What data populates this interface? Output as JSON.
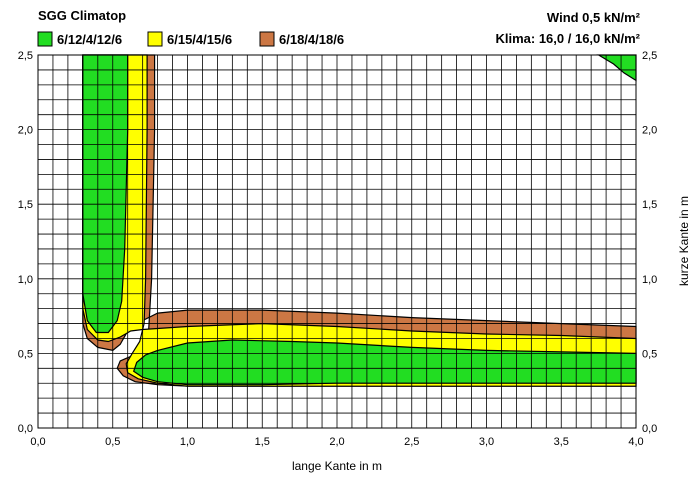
{
  "chart_data": {
    "type": "contour",
    "title": "SGG Climatop",
    "info_line_1": "Wind 0,5 kN/m²",
    "info_line_2": "Klima: 16,0 / 16,0 kN/m²",
    "xlabel": "lange Kante in m",
    "ylabel": "kurze Kante in m",
    "xlim": [
      0,
      4
    ],
    "ylim": [
      0,
      2.5
    ],
    "x_ticks": [
      "0,0",
      "0,5",
      "1,0",
      "1,5",
      "2,0",
      "2,5",
      "3,0",
      "3,5",
      "4,0"
    ],
    "y_ticks": [
      "0,0",
      "0,5",
      "1,0",
      "1,5",
      "2,0",
      "2,5"
    ],
    "grid": true,
    "legend": [
      {
        "label": "6/12/4/12/6",
        "color": "#22dd22"
      },
      {
        "label": "6/15/4/15/6",
        "color": "#ffff00"
      },
      {
        "label": "6/18/4/18/6",
        "color": "#cc7744"
      }
    ],
    "series": [
      {
        "name": "6/18/4/18/6",
        "color": "#cc7744",
        "regions": [
          [
            [
              0.3,
              2.5
            ],
            [
              0.3,
              0.7
            ],
            [
              0.33,
              0.6
            ],
            [
              0.4,
              0.54
            ],
            [
              0.5,
              0.52
            ],
            [
              0.55,
              0.56
            ],
            [
              0.6,
              0.65
            ],
            [
              0.7,
              0.72
            ],
            [
              0.8,
              0.77
            ],
            [
              1.0,
              0.79
            ],
            [
              1.5,
              0.79
            ],
            [
              2.0,
              0.77
            ],
            [
              2.5,
              0.74
            ],
            [
              3.0,
              0.72
            ],
            [
              3.5,
              0.7
            ],
            [
              4.0,
              0.68
            ],
            [
              4.0,
              0.28
            ],
            [
              3.5,
              0.28
            ],
            [
              3.0,
              0.28
            ],
            [
              2.5,
              0.28
            ],
            [
              2.0,
              0.28
            ],
            [
              1.5,
              0.28
            ],
            [
              1.0,
              0.28
            ],
            [
              0.8,
              0.29
            ],
            [
              0.65,
              0.31
            ],
            [
              0.57,
              0.35
            ],
            [
              0.53,
              0.4
            ],
            [
              0.55,
              0.45
            ],
            [
              0.62,
              0.48
            ],
            [
              0.7,
              0.54
            ],
            [
              0.74,
              0.65
            ],
            [
              0.76,
              1.0
            ],
            [
              0.78,
              2.0
            ],
            [
              0.78,
              2.5
            ]
          ]
        ]
      },
      {
        "name": "6/15/4/15/6",
        "color": "#ffff00",
        "regions": [
          [
            [
              0.3,
              2.5
            ],
            [
              0.3,
              0.8
            ],
            [
              0.33,
              0.66
            ],
            [
              0.4,
              0.59
            ],
            [
              0.47,
              0.58
            ],
            [
              0.55,
              0.61
            ],
            [
              0.62,
              0.65
            ],
            [
              0.7,
              0.66
            ],
            [
              1.0,
              0.68
            ],
            [
              1.5,
              0.7
            ],
            [
              2.0,
              0.68
            ],
            [
              2.5,
              0.65
            ],
            [
              3.0,
              0.63
            ],
            [
              3.5,
              0.62
            ],
            [
              4.0,
              0.6
            ],
            [
              4.0,
              0.28
            ],
            [
              3.0,
              0.28
            ],
            [
              2.0,
              0.28
            ],
            [
              1.0,
              0.28
            ],
            [
              0.8,
              0.3
            ],
            [
              0.67,
              0.33
            ],
            [
              0.6,
              0.37
            ],
            [
              0.59,
              0.43
            ],
            [
              0.63,
              0.5
            ],
            [
              0.68,
              0.58
            ],
            [
              0.71,
              0.7
            ],
            [
              0.72,
              1.0
            ],
            [
              0.73,
              2.0
            ],
            [
              0.73,
              2.5
            ]
          ]
        ]
      },
      {
        "name": "6/12/4/12/6",
        "color": "#22dd22",
        "regions": [
          [
            [
              0.3,
              2.5
            ],
            [
              0.3,
              0.9
            ],
            [
              0.33,
              0.72
            ],
            [
              0.39,
              0.64
            ],
            [
              0.47,
              0.64
            ],
            [
              0.53,
              0.72
            ],
            [
              0.56,
              0.85
            ],
            [
              0.58,
              1.2
            ],
            [
              0.6,
              2.0
            ],
            [
              0.6,
              2.5
            ]
          ],
          [
            [
              0.8,
              0.52
            ],
            [
              1.0,
              0.57
            ],
            [
              1.3,
              0.59
            ],
            [
              1.7,
              0.58
            ],
            [
              2.0,
              0.57
            ],
            [
              2.5,
              0.54
            ],
            [
              3.0,
              0.52
            ],
            [
              3.5,
              0.51
            ],
            [
              4.0,
              0.5
            ],
            [
              4.0,
              0.3
            ],
            [
              3.5,
              0.3
            ],
            [
              3.0,
              0.3
            ],
            [
              2.5,
              0.3
            ],
            [
              2.0,
              0.3
            ],
            [
              1.5,
              0.29
            ],
            [
              1.0,
              0.29
            ],
            [
              0.8,
              0.31
            ],
            [
              0.7,
              0.34
            ],
            [
              0.64,
              0.38
            ],
            [
              0.66,
              0.44
            ],
            [
              0.72,
              0.49
            ]
          ],
          [
            [
              3.75,
              2.5
            ],
            [
              4.0,
              2.5
            ],
            [
              4.0,
              2.33
            ],
            [
              3.92,
              2.38
            ],
            [
              3.85,
              2.44
            ]
          ]
        ]
      }
    ]
  }
}
